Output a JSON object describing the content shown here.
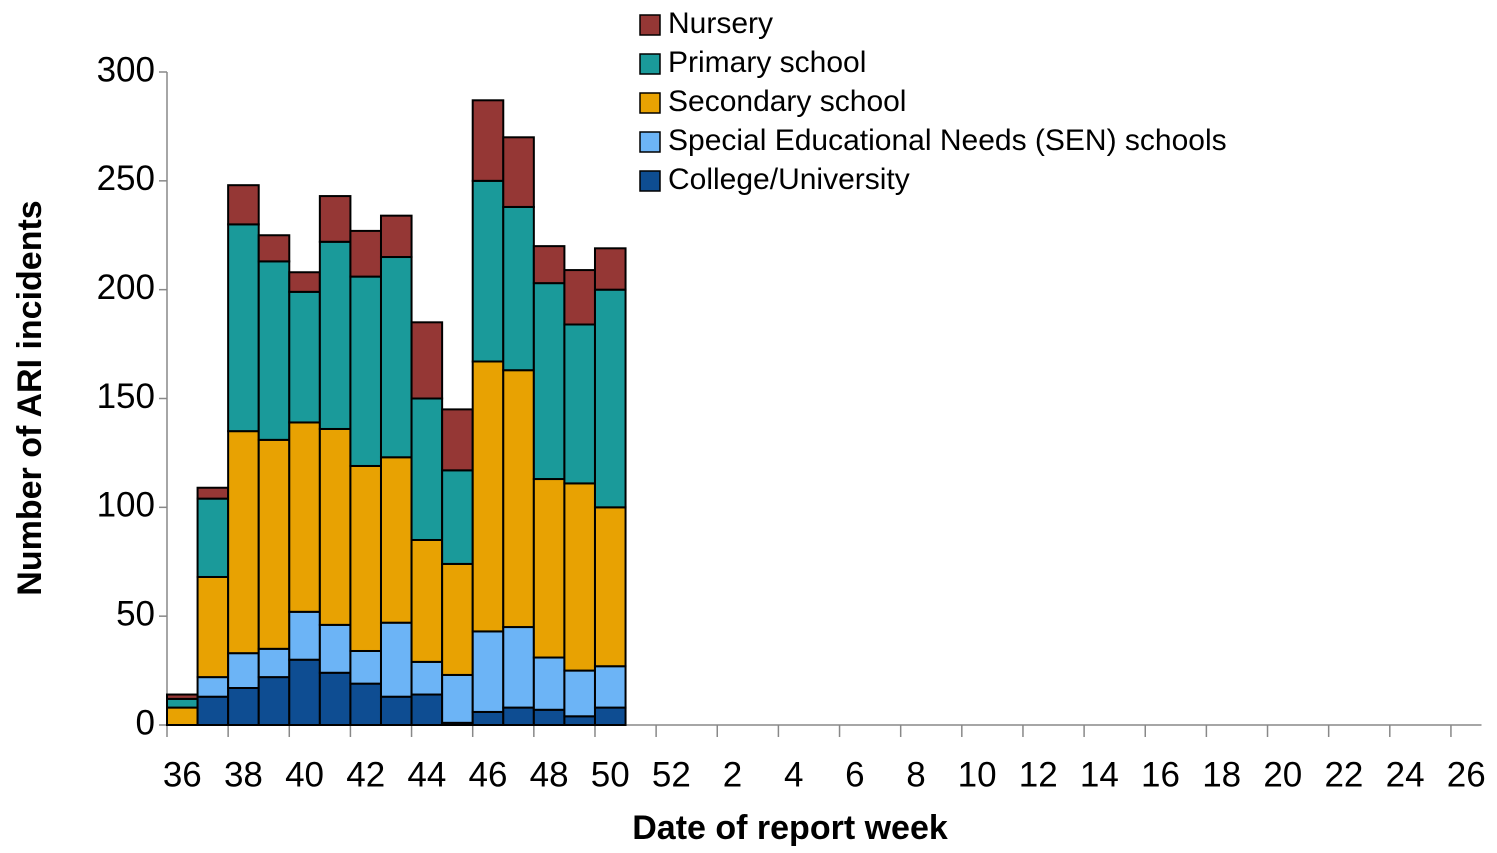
{
  "chart_data": {
    "type": "stacked-bar",
    "x_label": "Date of report week",
    "y_label": "Number of ARI incidents",
    "categories": [
      "36",
      null,
      "38",
      null,
      "40",
      null,
      "42",
      null,
      "44",
      null,
      "46",
      null,
      "48",
      null,
      "50",
      null,
      "52",
      null,
      "2",
      null,
      "4",
      null,
      "6",
      null,
      "8",
      null,
      "10",
      null,
      "12",
      null,
      "14",
      null,
      "16",
      null,
      "18",
      null,
      "20",
      null,
      "22",
      null,
      "24",
      null,
      "26"
    ],
    "series": [
      {
        "name": "Nursery",
        "color": "#953735",
        "values": [
          2,
          5,
          18,
          12,
          9,
          21,
          21,
          19,
          35,
          28,
          37,
          32,
          17,
          25,
          19,
          null,
          null,
          null,
          null,
          null,
          null,
          null,
          null,
          null,
          null,
          null,
          null,
          null,
          null,
          null,
          null,
          null,
          null,
          null,
          null,
          null,
          null,
          null,
          null,
          null,
          null,
          null,
          null
        ]
      },
      {
        "name": "Primary school",
        "color": "#1a9a9a",
        "values": [
          4,
          36,
          95,
          82,
          60,
          86,
          87,
          92,
          65,
          43,
          83,
          75,
          90,
          73,
          100,
          null,
          null,
          null,
          null,
          null,
          null,
          null,
          null,
          null,
          null,
          null,
          null,
          null,
          null,
          null,
          null,
          null,
          null,
          null,
          null,
          null,
          null,
          null,
          null,
          null,
          null,
          null,
          null
        ]
      },
      {
        "name": "Secondary school",
        "color": "#e8a202",
        "values": [
          8,
          46,
          102,
          96,
          87,
          90,
          85,
          76,
          56,
          51,
          124,
          118,
          82,
          86,
          73,
          null,
          null,
          null,
          null,
          null,
          null,
          null,
          null,
          null,
          null,
          null,
          null,
          null,
          null,
          null,
          null,
          null,
          null,
          null,
          null,
          null,
          null,
          null,
          null,
          null,
          null,
          null,
          null
        ]
      },
      {
        "name": "Special Educational Needs (SEN) schools",
        "color": "#6cb4f6",
        "values": [
          0,
          9,
          16,
          13,
          22,
          22,
          15,
          34,
          15,
          22,
          37,
          37,
          24,
          21,
          19,
          null,
          null,
          null,
          null,
          null,
          null,
          null,
          null,
          null,
          null,
          null,
          null,
          null,
          null,
          null,
          null,
          null,
          null,
          null,
          null,
          null,
          null,
          null,
          null,
          null,
          null,
          null,
          null
        ]
      },
      {
        "name": "College/University",
        "color": "#0e4d92",
        "values": [
          0,
          13,
          17,
          22,
          30,
          24,
          19,
          13,
          14,
          1,
          6,
          8,
          7,
          4,
          8,
          null,
          null,
          null,
          null,
          null,
          null,
          null,
          null,
          null,
          null,
          null,
          null,
          null,
          null,
          null,
          null,
          null,
          null,
          null,
          null,
          null,
          null,
          null,
          null,
          null,
          null,
          null,
          null
        ]
      }
    ],
    "ylim": [
      0,
      300
    ],
    "yticks": [
      0,
      50,
      100,
      150,
      200,
      250,
      300
    ],
    "legend": "top"
  }
}
